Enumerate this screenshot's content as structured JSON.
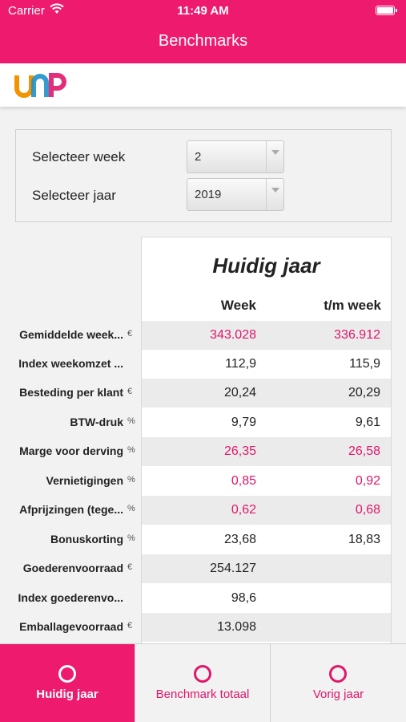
{
  "status_bar": {
    "carrier": "Carrier",
    "time": "11:49 AM"
  },
  "nav": {
    "title": "Benchmarks"
  },
  "brand": {
    "logo": "UNP",
    "colors": [
      "#f29400",
      "#1f8fc8",
      "#e0176a"
    ]
  },
  "selection": {
    "week_label": "Selecteer week",
    "week_value": "2",
    "year_label": "Selecteer jaar",
    "year_value": "2019"
  },
  "table": {
    "title": "Huidig jaar",
    "col_week": "Week",
    "col_tm": "t/m week",
    "rows": [
      {
        "label": "Gemiddelde week...",
        "unit": "€",
        "week": "343.028",
        "tm": "336.912"
      },
      {
        "label": "Index weekomzet ...",
        "unit": "",
        "week": "112,9",
        "tm": "115,9"
      },
      {
        "label": "Besteding per klant",
        "unit": "€",
        "week": "20,24",
        "tm": "20,29"
      },
      {
        "label": "BTW-druk",
        "unit": "%",
        "week": "9,79",
        "tm": "9,61"
      },
      {
        "label": "Marge voor derving",
        "unit": "%",
        "week": "26,35",
        "tm": "26,58"
      },
      {
        "label": "Vernietigingen",
        "unit": "%",
        "week": "0,85",
        "tm": "0,92"
      },
      {
        "label": "Afprijzingen (tege...",
        "unit": "%",
        "week": "0,62",
        "tm": "0,68"
      },
      {
        "label": "Bonuskorting",
        "unit": "%",
        "week": "23,68",
        "tm": "18,83"
      },
      {
        "label": "Goederenvoorraad",
        "unit": "€",
        "week": "254.127",
        "tm": ""
      },
      {
        "label": "Index goederenvo...",
        "unit": "",
        "week": "98,6",
        "tm": ""
      },
      {
        "label": "Emballagevoorraad",
        "unit": "€",
        "week": "13.098",
        "tm": ""
      }
    ]
  },
  "tabs": [
    {
      "label": "Huidig jaar",
      "active": true
    },
    {
      "label": "Benchmark totaal",
      "active": false
    },
    {
      "label": "Vorig jaar",
      "active": false
    }
  ],
  "accent_color": "#ee1a6e",
  "highlight_color": "#e0176a"
}
